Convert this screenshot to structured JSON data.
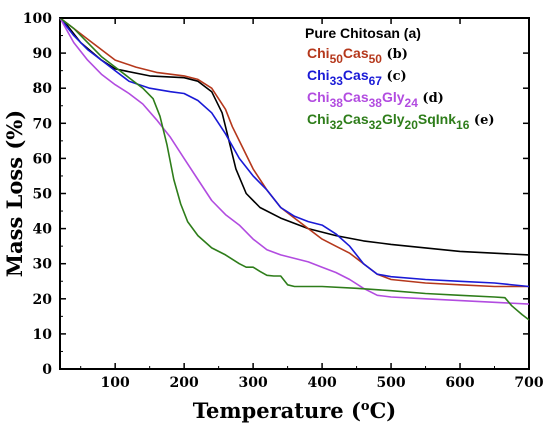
{
  "chart_data": {
    "type": "line",
    "xlabel": "Temperature (",
    "xlabel_sup": "o",
    "xlabel_end": "C)",
    "ylabel": "Mass Loss (%)",
    "xlim": [
      20,
      700
    ],
    "ylim": [
      0,
      100
    ],
    "x_ticks": [
      "100",
      "200",
      "300",
      "400",
      "500",
      "600",
      "700"
    ],
    "y_ticks": [
      "0",
      "10",
      "20",
      "30",
      "40",
      "50",
      "60",
      "70",
      "80",
      "90",
      "100"
    ],
    "legend_position": "top-right",
    "series": [
      {
        "name": "Pure Chitosan (a)",
        "legend": [
          {
            "t": "Pure Chitosan (a)",
            "sub": false
          }
        ],
        "legend_suffix": "",
        "color": "#000000",
        "points": [
          [
            20,
            100
          ],
          [
            30,
            98
          ],
          [
            50,
            93
          ],
          [
            80,
            88
          ],
          [
            100,
            85.5
          ],
          [
            150,
            83.5
          ],
          [
            200,
            83
          ],
          [
            220,
            82
          ],
          [
            240,
            79
          ],
          [
            255,
            73
          ],
          [
            265,
            65
          ],
          [
            275,
            57
          ],
          [
            290,
            50
          ],
          [
            310,
            46
          ],
          [
            340,
            43
          ],
          [
            380,
            40
          ],
          [
            420,
            38
          ],
          [
            460,
            36.5
          ],
          [
            500,
            35.5
          ],
          [
            550,
            34.5
          ],
          [
            600,
            33.5
          ],
          [
            650,
            33
          ],
          [
            700,
            32.5
          ]
        ]
      },
      {
        "name": "Chi50Cas50 (b)",
        "legend": [
          {
            "t": "Chi",
            "sub": false
          },
          {
            "t": "50",
            "sub": true
          },
          {
            "t": "Cas",
            "sub": false
          },
          {
            "t": "50",
            "sub": true
          }
        ],
        "legend_suffix": " (b)",
        "color": "#b5381c",
        "points": [
          [
            20,
            100
          ],
          [
            40,
            97
          ],
          [
            60,
            94
          ],
          [
            80,
            91
          ],
          [
            100,
            88
          ],
          [
            130,
            86
          ],
          [
            160,
            84.5
          ],
          [
            200,
            83.5
          ],
          [
            220,
            82.5
          ],
          [
            240,
            80
          ],
          [
            260,
            74
          ],
          [
            270,
            69
          ],
          [
            285,
            63
          ],
          [
            300,
            57
          ],
          [
            320,
            51
          ],
          [
            340,
            46
          ],
          [
            360,
            43
          ],
          [
            380,
            40
          ],
          [
            400,
            37
          ],
          [
            420,
            35
          ],
          [
            440,
            33
          ],
          [
            460,
            30
          ],
          [
            480,
            27
          ],
          [
            500,
            25.5
          ],
          [
            550,
            24.5
          ],
          [
            600,
            24
          ],
          [
            650,
            23.5
          ],
          [
            700,
            23.5
          ]
        ]
      },
      {
        "name": "Chi33Cas67 (c)",
        "legend": [
          {
            "t": "Chi",
            "sub": false
          },
          {
            "t": "33",
            "sub": true
          },
          {
            "t": "Cas",
            "sub": false
          },
          {
            "t": "67",
            "sub": true
          }
        ],
        "legend_suffix": " (c)",
        "color": "#1a1ad6",
        "points": [
          [
            20,
            100
          ],
          [
            40,
            95
          ],
          [
            60,
            91
          ],
          [
            80,
            88
          ],
          [
            100,
            85
          ],
          [
            120,
            82
          ],
          [
            150,
            80
          ],
          [
            180,
            79
          ],
          [
            200,
            78.5
          ],
          [
            220,
            76.5
          ],
          [
            240,
            73
          ],
          [
            260,
            67
          ],
          [
            280,
            60
          ],
          [
            300,
            55
          ],
          [
            320,
            51
          ],
          [
            340,
            46
          ],
          [
            360,
            43.5
          ],
          [
            380,
            42
          ],
          [
            400,
            41
          ],
          [
            420,
            38.5
          ],
          [
            440,
            35
          ],
          [
            460,
            30
          ],
          [
            480,
            27
          ],
          [
            500,
            26.3
          ],
          [
            550,
            25.5
          ],
          [
            600,
            25
          ],
          [
            650,
            24.5
          ],
          [
            700,
            23.5
          ]
        ]
      },
      {
        "name": "Chi38Cas38Gly24 (d)",
        "legend": [
          {
            "t": "Chi",
            "sub": false
          },
          {
            "t": "38",
            "sub": true
          },
          {
            "t": "Cas",
            "sub": false
          },
          {
            "t": "38",
            "sub": true
          },
          {
            "t": "Gly",
            "sub": false
          },
          {
            "t": "24",
            "sub": true
          }
        ],
        "legend_suffix": " (d)",
        "color": "#b24ce0",
        "points": [
          [
            20,
            100
          ],
          [
            40,
            93
          ],
          [
            60,
            88
          ],
          [
            80,
            84
          ],
          [
            100,
            81
          ],
          [
            120,
            78.5
          ],
          [
            140,
            75.5
          ],
          [
            160,
            71
          ],
          [
            180,
            66
          ],
          [
            200,
            60
          ],
          [
            220,
            54
          ],
          [
            240,
            48
          ],
          [
            260,
            44
          ],
          [
            280,
            41
          ],
          [
            300,
            37
          ],
          [
            320,
            34
          ],
          [
            340,
            32.5
          ],
          [
            360,
            31.5
          ],
          [
            380,
            30.5
          ],
          [
            400,
            29
          ],
          [
            420,
            27.5
          ],
          [
            440,
            25.5
          ],
          [
            460,
            23
          ],
          [
            480,
            21
          ],
          [
            500,
            20.5
          ],
          [
            550,
            20
          ],
          [
            600,
            19.5
          ],
          [
            650,
            19
          ],
          [
            700,
            18.5
          ]
        ]
      },
      {
        "name": "Chi32Cas32Gly20SqInk16 (e)",
        "legend": [
          {
            "t": "Chi",
            "sub": false
          },
          {
            "t": "32",
            "sub": true
          },
          {
            "t": "Cas",
            "sub": false
          },
          {
            "t": "32",
            "sub": true
          },
          {
            "t": "Gly",
            "sub": false
          },
          {
            "t": "20",
            "sub": true
          },
          {
            "t": "SqInk",
            "sub": false
          },
          {
            "t": "16",
            "sub": true
          }
        ],
        "legend_suffix": " (e)",
        "color": "#2e7d1a",
        "points": [
          [
            20,
            100
          ],
          [
            40,
            97
          ],
          [
            60,
            93
          ],
          [
            80,
            89
          ],
          [
            100,
            86
          ],
          [
            120,
            83
          ],
          [
            140,
            80
          ],
          [
            155,
            77
          ],
          [
            165,
            72
          ],
          [
            175,
            64
          ],
          [
            185,
            54
          ],
          [
            195,
            47
          ],
          [
            205,
            42
          ],
          [
            220,
            38
          ],
          [
            240,
            34.5
          ],
          [
            260,
            32.5
          ],
          [
            280,
            30
          ],
          [
            290,
            29
          ],
          [
            300,
            29
          ],
          [
            310,
            27.8
          ],
          [
            320,
            26.7
          ],
          [
            330,
            26.5
          ],
          [
            340,
            26.5
          ],
          [
            350,
            24
          ],
          [
            360,
            23.5
          ],
          [
            400,
            23.5
          ],
          [
            450,
            23
          ],
          [
            500,
            22.3
          ],
          [
            550,
            21.5
          ],
          [
            600,
            21
          ],
          [
            650,
            20.5
          ],
          [
            665,
            20.3
          ],
          [
            675,
            18
          ],
          [
            690,
            15.5
          ],
          [
            700,
            14
          ]
        ]
      }
    ]
  }
}
